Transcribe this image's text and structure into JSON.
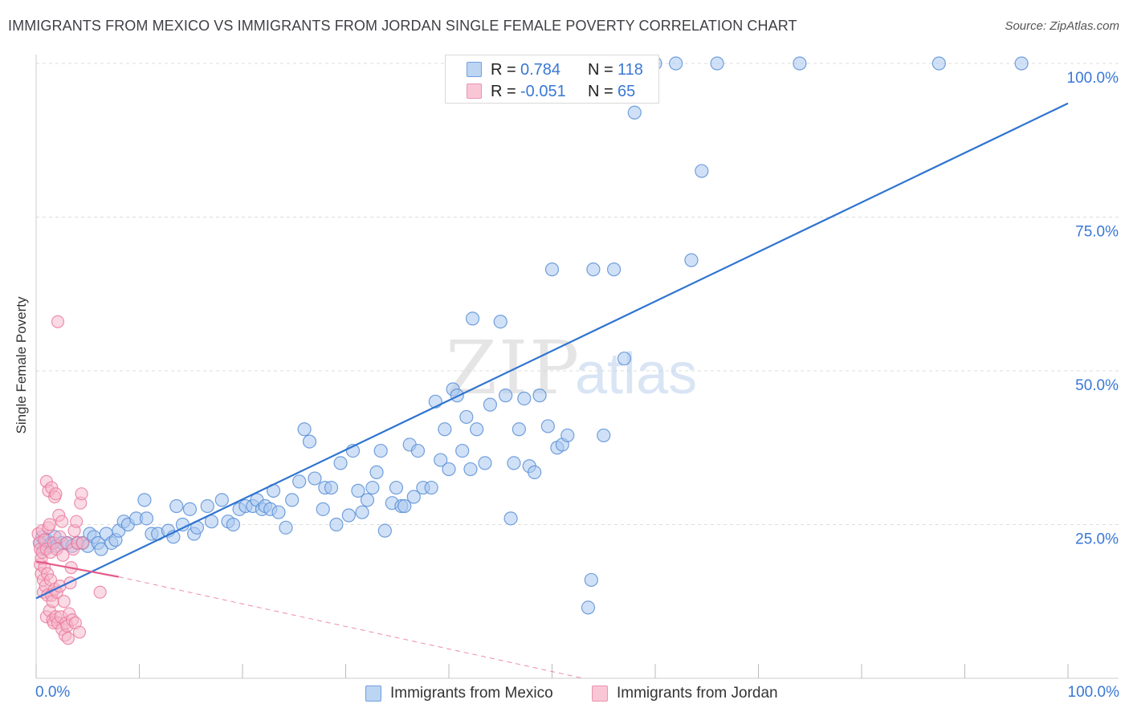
{
  "header": {
    "title": "IMMIGRANTS FROM MEXICO VS IMMIGRANTS FROM JORDAN SINGLE FEMALE POVERTY CORRELATION CHART",
    "source": "Source: ZipAtlas.com"
  },
  "colors": {
    "mexico_fill": "#a9c8f0",
    "mexico_stroke": "#5a8fd6",
    "mexico_line": "#2f74d0",
    "jordan_fill": "#f6b6c9",
    "jordan_stroke": "#e8789c",
    "jordan_line": "#e45b8b",
    "axis_text": "#3a78d4",
    "grid": "#dddddd"
  },
  "legend": {
    "rows": [
      {
        "r_label": "R =",
        "r_value": "0.784",
        "n_label": "N =",
        "n_value": "118"
      },
      {
        "r_label": "R =",
        "r_value": "-0.051",
        "n_label": "N =",
        "n_value": "65"
      }
    ],
    "series_names": [
      "Immigrants from Mexico",
      "Immigrants from Jordan"
    ]
  },
  "watermark": {
    "zip": "ZIP",
    "atlas": "atlas"
  },
  "chart_data": {
    "type": "scatter",
    "title": "IMMIGRANTS FROM MEXICO VS IMMIGRANTS FROM JORDAN SINGLE FEMALE POVERTY CORRELATION CHART",
    "xlabel": "",
    "ylabel": "Single Female Poverty",
    "xlim": [
      0,
      100
    ],
    "ylim": [
      0,
      100
    ],
    "x_tick_labels": [
      "0.0%",
      "100.0%"
    ],
    "y_ticks": [
      25,
      50,
      75,
      100
    ],
    "y_tick_labels": [
      "25.0%",
      "50.0%",
      "75.0%",
      "100.0%"
    ],
    "grid": true,
    "series": [
      {
        "name": "Immigrants from Mexico",
        "r": 0.784,
        "n": 118,
        "trend": {
          "x": [
            0,
            100
          ],
          "y": [
            13,
            93.5
          ],
          "style": "solid"
        },
        "points": [
          [
            0.4,
            22
          ],
          [
            0.6,
            23
          ],
          [
            0.8,
            21
          ],
          [
            1,
            22.5
          ],
          [
            1.2,
            21.5
          ],
          [
            1.5,
            22
          ],
          [
            1.8,
            23
          ],
          [
            2,
            21.5
          ],
          [
            2.5,
            22
          ],
          [
            3,
            22
          ],
          [
            3.5,
            21.5
          ],
          [
            4,
            22
          ],
          [
            4.5,
            22
          ],
          [
            5,
            21.5
          ],
          [
            5.2,
            23.5
          ],
          [
            5.6,
            23
          ],
          [
            6,
            22
          ],
          [
            6.3,
            21
          ],
          [
            6.8,
            23.5
          ],
          [
            7.3,
            22
          ],
          [
            7.7,
            22.5
          ],
          [
            8,
            24
          ],
          [
            8.5,
            25.5
          ],
          [
            8.9,
            25
          ],
          [
            9.7,
            26
          ],
          [
            10.5,
            29
          ],
          [
            10.7,
            26
          ],
          [
            11.2,
            23.5
          ],
          [
            11.8,
            23.5
          ],
          [
            12.8,
            24
          ],
          [
            13.3,
            23
          ],
          [
            13.6,
            28
          ],
          [
            14.2,
            25
          ],
          [
            14.9,
            27.5
          ],
          [
            15.3,
            23.5
          ],
          [
            15.6,
            24.5
          ],
          [
            16.6,
            28
          ],
          [
            17,
            25.5
          ],
          [
            18,
            29
          ],
          [
            18.6,
            25.5
          ],
          [
            19.1,
            25
          ],
          [
            19.7,
            27.5
          ],
          [
            20.3,
            28
          ],
          [
            21,
            28
          ],
          [
            21.4,
            29
          ],
          [
            21.9,
            27.5
          ],
          [
            22.2,
            28
          ],
          [
            22.7,
            27.5
          ],
          [
            23,
            30.5
          ],
          [
            23.5,
            27
          ],
          [
            24.2,
            24.5
          ],
          [
            24.8,
            29
          ],
          [
            25.5,
            32
          ],
          [
            26,
            40.5
          ],
          [
            26.5,
            38.5
          ],
          [
            27,
            32.5
          ],
          [
            27.8,
            27.5
          ],
          [
            28,
            31
          ],
          [
            28.6,
            31
          ],
          [
            29.1,
            25
          ],
          [
            29.5,
            35
          ],
          [
            30.3,
            26.5
          ],
          [
            30.7,
            37
          ],
          [
            31.2,
            30.5
          ],
          [
            31.6,
            27
          ],
          [
            32.1,
            29
          ],
          [
            32.6,
            31
          ],
          [
            33,
            33.5
          ],
          [
            33.4,
            37
          ],
          [
            33.8,
            24
          ],
          [
            34.5,
            28.5
          ],
          [
            34.9,
            31
          ],
          [
            35.4,
            28
          ],
          [
            35.7,
            28
          ],
          [
            36.2,
            38
          ],
          [
            36.6,
            29.5
          ],
          [
            37,
            37
          ],
          [
            37.5,
            31
          ],
          [
            38.3,
            31
          ],
          [
            38.7,
            45
          ],
          [
            39.2,
            35.5
          ],
          [
            39.6,
            40.5
          ],
          [
            40,
            34
          ],
          [
            40.4,
            47
          ],
          [
            40.8,
            46
          ],
          [
            41.3,
            37
          ],
          [
            41.7,
            42.5
          ],
          [
            42.1,
            34
          ],
          [
            42.3,
            58.5
          ],
          [
            42.7,
            40.5
          ],
          [
            43.5,
            35
          ],
          [
            44,
            44.5
          ],
          [
            45,
            58
          ],
          [
            45.5,
            46
          ],
          [
            46,
            26
          ],
          [
            46.3,
            35
          ],
          [
            46.8,
            40.5
          ],
          [
            47.3,
            45.5
          ],
          [
            47.8,
            34.5
          ],
          [
            48.3,
            33.5
          ],
          [
            48.8,
            46
          ],
          [
            49.6,
            41
          ],
          [
            50,
            66.5
          ],
          [
            50.5,
            37.5
          ],
          [
            51,
            38
          ],
          [
            51.5,
            39.5
          ],
          [
            53.5,
            11.5
          ],
          [
            53.8,
            16
          ],
          [
            54,
            66.5
          ],
          [
            55,
            39.5
          ],
          [
            56,
            66.5
          ],
          [
            57,
            52
          ],
          [
            58,
            92
          ],
          [
            60,
            100
          ],
          [
            62,
            100
          ],
          [
            63.5,
            68
          ],
          [
            64.5,
            82.5
          ],
          [
            66,
            100
          ],
          [
            74,
            100
          ],
          [
            87.5,
            100
          ],
          [
            95.5,
            100
          ]
        ]
      },
      {
        "name": "Immigrants from Jordan",
        "r": -0.051,
        "n": 65,
        "trend_solid": {
          "x": [
            0,
            8
          ],
          "y": [
            19,
            16.5
          ]
        },
        "trend_dashed": {
          "x": [
            8,
            53
          ],
          "y": [
            16.5,
            0
          ]
        },
        "points": [
          [
            0.2,
            23.5
          ],
          [
            0.3,
            22
          ],
          [
            0.4,
            21
          ],
          [
            0.4,
            18.5
          ],
          [
            0.5,
            17
          ],
          [
            0.5,
            19.5
          ],
          [
            0.6,
            24
          ],
          [
            0.6,
            20.5
          ],
          [
            0.7,
            16
          ],
          [
            0.7,
            14
          ],
          [
            0.8,
            22.5
          ],
          [
            0.8,
            18
          ],
          [
            0.9,
            15
          ],
          [
            1,
            32
          ],
          [
            1,
            21
          ],
          [
            1,
            10
          ],
          [
            1.1,
            13.5
          ],
          [
            1.1,
            17
          ],
          [
            1.2,
            24.5
          ],
          [
            1.2,
            30.5
          ],
          [
            1.3,
            25
          ],
          [
            1.3,
            11
          ],
          [
            1.4,
            20.5
          ],
          [
            1.4,
            16
          ],
          [
            1.5,
            31
          ],
          [
            1.5,
            13.5
          ],
          [
            1.6,
            12.5
          ],
          [
            1.6,
            9.5
          ],
          [
            1.7,
            9
          ],
          [
            1.7,
            22
          ],
          [
            1.8,
            14.5
          ],
          [
            1.8,
            29.5
          ],
          [
            1.9,
            30
          ],
          [
            1.9,
            10
          ],
          [
            2,
            21
          ],
          [
            2,
            14
          ],
          [
            2.1,
            9
          ],
          [
            2.1,
            58
          ],
          [
            2.2,
            26.5
          ],
          [
            2.3,
            23
          ],
          [
            2.3,
            15
          ],
          [
            2.4,
            10
          ],
          [
            2.5,
            25.5
          ],
          [
            2.5,
            8
          ],
          [
            2.6,
            20
          ],
          [
            2.7,
            12.5
          ],
          [
            2.8,
            7
          ],
          [
            2.9,
            9
          ],
          [
            3,
            22
          ],
          [
            3,
            8.5
          ],
          [
            3.1,
            6.5
          ],
          [
            3.2,
            10.5
          ],
          [
            3.3,
            15.5
          ],
          [
            3.4,
            18
          ],
          [
            3.5,
            9.5
          ],
          [
            3.6,
            21
          ],
          [
            3.7,
            24
          ],
          [
            3.8,
            9
          ],
          [
            3.9,
            25.5
          ],
          [
            4,
            22
          ],
          [
            4.2,
            7.5
          ],
          [
            4.3,
            28.5
          ],
          [
            4.4,
            30
          ],
          [
            4.5,
            22
          ],
          [
            6.2,
            14
          ]
        ]
      }
    ]
  }
}
